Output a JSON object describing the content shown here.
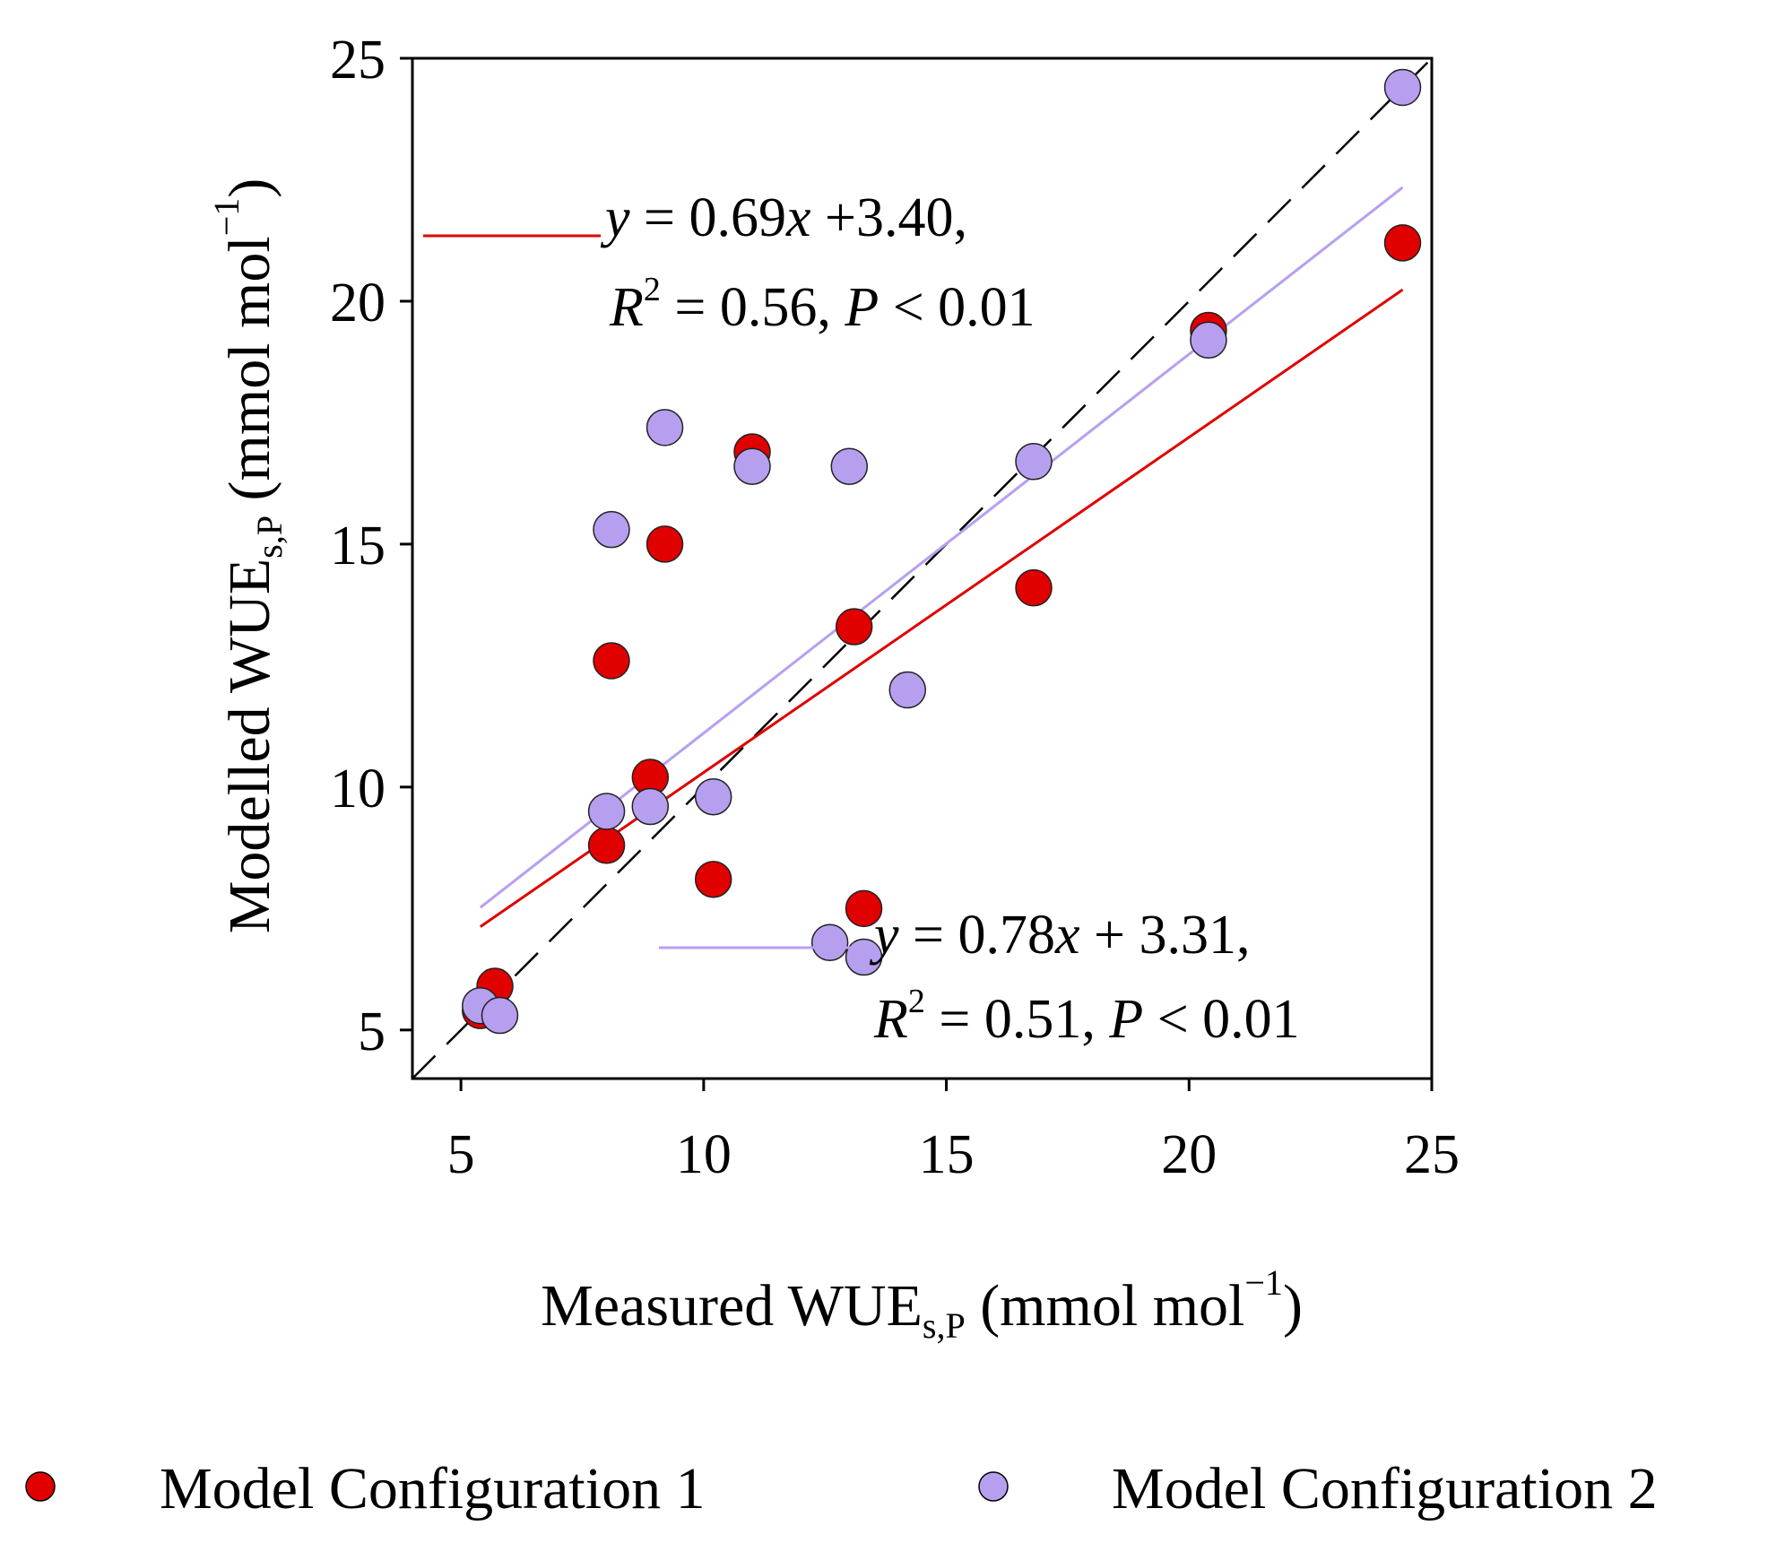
{
  "chart_data": {
    "type": "scatter",
    "xlabel": {
      "main": "Measured WUE",
      "sub": "s,P",
      "unit_open": " (mmol  mol",
      "sup": "−1",
      "unit_close": ")"
    },
    "ylabel": {
      "main": "Modelled WUE",
      "sub": "s,P",
      "unit_open": " (mmol  mol",
      "sup": "−1",
      "unit_close": ")"
    },
    "xlim": [
      4,
      25
    ],
    "ylim": [
      4,
      25
    ],
    "xticks": [
      "5",
      "10",
      "15",
      "20",
      "25"
    ],
    "yticks": [
      "5",
      "10",
      "15",
      "20",
      "25"
    ],
    "grid": false,
    "legend_position": "bottom",
    "one_to_one_line": {
      "style": "dashed",
      "color": "#000000"
    },
    "series": [
      {
        "name": "Model Configuration 1",
        "color": "#e00000",
        "points": [
          {
            "x": 5.4,
            "y": 5.4
          },
          {
            "x": 5.7,
            "y": 5.9
          },
          {
            "x": 8.0,
            "y": 8.8
          },
          {
            "x": 8.1,
            "y": 12.6
          },
          {
            "x": 8.9,
            "y": 10.2
          },
          {
            "x": 9.2,
            "y": 15.0
          },
          {
            "x": 10.2,
            "y": 8.1
          },
          {
            "x": 11.0,
            "y": 16.9
          },
          {
            "x": 13.1,
            "y": 13.3
          },
          {
            "x": 13.3,
            "y": 7.5
          },
          {
            "x": 16.8,
            "y": 14.1
          },
          {
            "x": 20.4,
            "y": 19.4
          },
          {
            "x": 24.4,
            "y": 21.2
          }
        ],
        "fit": {
          "slope": 0.69,
          "intercept": 3.4,
          "x_range": [
            5.4,
            24.4
          ]
        },
        "equation": {
          "y_lhs": "y",
          "eq_mid": " = 0.69",
          "x_var": "x",
          "eq_end": " +3.40,",
          "r": "R",
          "r_exp": "2",
          "r_mid": " = 0.56, ",
          "p": "P",
          "p_end": " < 0.01"
        }
      },
      {
        "name": "Model Configuration 2",
        "color": "#b79ff0",
        "points": [
          {
            "x": 5.4,
            "y": 5.5
          },
          {
            "x": 5.8,
            "y": 5.3
          },
          {
            "x": 8.0,
            "y": 9.5
          },
          {
            "x": 8.1,
            "y": 15.3
          },
          {
            "x": 8.9,
            "y": 9.6
          },
          {
            "x": 9.2,
            "y": 17.4
          },
          {
            "x": 10.2,
            "y": 9.8
          },
          {
            "x": 11.0,
            "y": 16.6
          },
          {
            "x": 12.6,
            "y": 6.8
          },
          {
            "x": 13.0,
            "y": 16.6
          },
          {
            "x": 13.3,
            "y": 6.5
          },
          {
            "x": 14.2,
            "y": 12.0
          },
          {
            "x": 16.8,
            "y": 16.7
          },
          {
            "x": 20.4,
            "y": 19.2
          },
          {
            "x": 24.4,
            "y": 24.4
          }
        ],
        "fit": {
          "slope": 0.78,
          "intercept": 3.31,
          "x_range": [
            5.4,
            24.4
          ]
        },
        "equation": {
          "y_lhs": "y",
          "eq_mid": " = 0.78",
          "x_var": "x",
          "eq_end": " + 3.31,",
          "r": "R",
          "r_exp": "2",
          "r_mid": " = 0.51, ",
          "p": "P",
          "p_end": " < 0.01"
        }
      }
    ]
  }
}
